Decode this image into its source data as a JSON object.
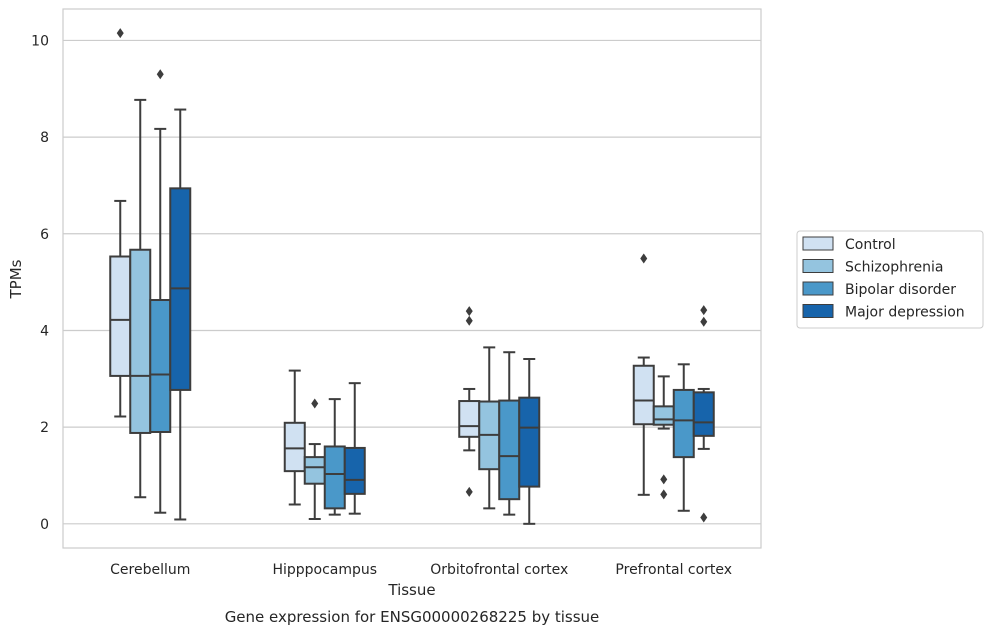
{
  "caption": "Gene expression for ENSG00000268225 by tissue",
  "chart_data": {
    "type": "box",
    "xlabel": "Tissue",
    "ylabel": "TPMs",
    "ylim": [
      -0.5,
      10.65
    ],
    "yticks": [
      0,
      2,
      4,
      6,
      8,
      10
    ],
    "grid": "horizontal",
    "legend_position": "outside-right",
    "categories": [
      "Cerebellum",
      "Hipppocampus",
      "Orbitofrontal cortex",
      "Prefrontal cortex"
    ],
    "series": [
      {
        "name": "Control",
        "color": "#d0e1f2",
        "boxes": [
          {
            "whislo": 2.22,
            "q1": 3.06,
            "med": 4.22,
            "q3": 5.53,
            "whishi": 6.68,
            "fliers": [
              10.15
            ]
          },
          {
            "whislo": 0.4,
            "q1": 1.09,
            "med": 1.56,
            "q3": 2.09,
            "whishi": 3.17,
            "fliers": []
          },
          {
            "whislo": 1.52,
            "q1": 1.8,
            "med": 2.02,
            "q3": 2.54,
            "whishi": 2.79,
            "fliers": [
              4.4,
              4.2,
              0.66
            ]
          },
          {
            "whislo": 0.6,
            "q1": 2.06,
            "med": 2.55,
            "q3": 3.27,
            "whishi": 3.44,
            "fliers": [
              5.49
            ]
          }
        ]
      },
      {
        "name": "Schizophrenia",
        "color": "#94c4df",
        "boxes": [
          {
            "whislo": 0.55,
            "q1": 1.88,
            "med": 3.06,
            "q3": 5.67,
            "whishi": 8.77,
            "fliers": []
          },
          {
            "whislo": 0.1,
            "q1": 0.83,
            "med": 1.17,
            "q3": 1.38,
            "whishi": 1.65,
            "fliers": [
              2.49
            ]
          },
          {
            "whislo": 0.32,
            "q1": 1.13,
            "med": 1.84,
            "q3": 2.53,
            "whishi": 3.65,
            "fliers": []
          },
          {
            "whislo": 1.97,
            "q1": 2.05,
            "med": 2.16,
            "q3": 2.43,
            "whishi": 3.05,
            "fliers": [
              0.92,
              0.61
            ]
          }
        ]
      },
      {
        "name": "Bipolar disorder",
        "color": "#4a98c9",
        "boxes": [
          {
            "whislo": 0.23,
            "q1": 1.9,
            "med": 3.09,
            "q3": 4.63,
            "whishi": 8.17,
            "fliers": [
              9.3
            ]
          },
          {
            "whislo": 0.19,
            "q1": 0.32,
            "med": 1.03,
            "q3": 1.6,
            "whishi": 2.58,
            "fliers": []
          },
          {
            "whislo": 0.19,
            "q1": 0.51,
            "med": 1.4,
            "q3": 2.55,
            "whishi": 3.55,
            "fliers": []
          },
          {
            "whislo": 0.27,
            "q1": 1.38,
            "med": 2.14,
            "q3": 2.77,
            "whishi": 3.3,
            "fliers": []
          }
        ]
      },
      {
        "name": "Major depression",
        "color": "#1764ab",
        "boxes": [
          {
            "whislo": 0.09,
            "q1": 2.77,
            "med": 4.87,
            "q3": 6.94,
            "whishi": 8.57,
            "fliers": []
          },
          {
            "whislo": 0.21,
            "q1": 0.62,
            "med": 0.91,
            "q3": 1.57,
            "whishi": 2.91,
            "fliers": []
          },
          {
            "whislo": 0.0,
            "q1": 0.77,
            "med": 1.99,
            "q3": 2.61,
            "whishi": 3.41,
            "fliers": []
          },
          {
            "whislo": 1.55,
            "q1": 1.82,
            "med": 2.1,
            "q3": 2.72,
            "whishi": 2.79,
            "fliers": [
              4.42,
              4.18,
              0.13
            ]
          }
        ]
      }
    ]
  }
}
